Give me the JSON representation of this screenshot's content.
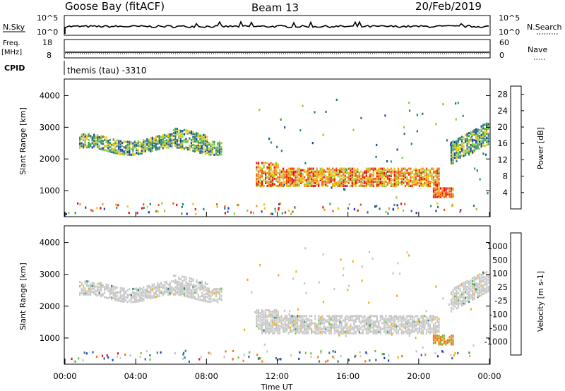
{
  "header": {
    "station": "Goose Bay (fitACF)",
    "beam": "Beam 13",
    "date": "20/Feb/2019"
  },
  "top_panels": {
    "nsky_label": "N.Sky",
    "nsky_ticks": [
      "10^5",
      "10^0"
    ],
    "nsearch_label": "N.Search",
    "nsearch_ticks": [
      "10^5",
      "10^0"
    ],
    "freq_label": "Freq.",
    "freq_unit": "[MHz]",
    "freq_ticks": [
      "18",
      "8"
    ],
    "nave_label": "Nave",
    "nave_ticks": [
      "60",
      "0"
    ],
    "cpid_label": "CPID",
    "cpid_text": "themis (tau) -3310"
  },
  "colors": {
    "power_scale": [
      "#1f1fff",
      "#1f4aa3",
      "#2a7a78",
      "#3a9b5a",
      "#8fce3a",
      "#f4c20d",
      "#f59a12",
      "#f05a10",
      "#e81010"
    ],
    "velocity_scale": [
      "#1a3fd6",
      "#2a66c8",
      "#2e8c6a",
      "#6cc43a",
      "#c8c8c8",
      "#c8c8c8",
      "#f5b014",
      "#f57a10",
      "#e81010"
    ],
    "ground_scatter": "#c8c8c8"
  },
  "chart_data": [
    {
      "type": "heatmap",
      "name": "Power",
      "ylabel": "Slant Range [km]",
      "yticks": [
        "1000",
        "2000",
        "3000",
        "4000"
      ],
      "ylim": [
        200,
        4500
      ],
      "xlabel": "",
      "xlim_hours": [
        0,
        24
      ],
      "colorbar_label": "Power [dB]",
      "colorbar_ticks": [
        "4",
        "8",
        "12",
        "16",
        "20",
        "24",
        "28"
      ],
      "colorbar_range": [
        0,
        30
      ],
      "regions": [
        {
          "x": [
            0.8,
            8.8
          ],
          "y": [
            2150,
            2950
          ],
          "level": "12-20"
        },
        {
          "x": [
            10.8,
            21.2
          ],
          "y": [
            1100,
            1750
          ],
          "level": "16-28"
        },
        {
          "x": [
            20.8,
            22.0
          ],
          "y": [
            800,
            1100
          ],
          "level": "20-28"
        },
        {
          "x": [
            21.8,
            24.0
          ],
          "y": [
            1900,
            3000
          ],
          "level": "8-16"
        }
      ]
    },
    {
      "type": "heatmap",
      "name": "Velocity",
      "ylabel": "Slant Range [km]",
      "yticks": [
        "1000",
        "2000",
        "3000",
        "4000"
      ],
      "ylim": [
        200,
        4500
      ],
      "xlabel": "Time UT",
      "xticks": [
        "00:00",
        "04:00",
        "08:00",
        "12:00",
        "16:00",
        "20:00",
        "00:00"
      ],
      "xlim_hours": [
        0,
        24
      ],
      "colorbar_label": "Velocity [m s-1]",
      "colorbar_ticks": [
        "1000",
        "500",
        "100",
        "25",
        "-25",
        "-100",
        "-500",
        "-1000"
      ],
      "regions": [
        {
          "x": [
            0.8,
            8.8
          ],
          "y": [
            2150,
            2950
          ],
          "level": "ground scatter"
        },
        {
          "x": [
            10.8,
            21.2
          ],
          "y": [
            1100,
            1750
          ],
          "level": "ground scatter"
        },
        {
          "x": [
            20.8,
            22.0
          ],
          "y": [
            800,
            1100
          ],
          "level": "-100 to -500"
        },
        {
          "x": [
            21.8,
            24.0
          ],
          "y": [
            1900,
            3000
          ],
          "level": "ground scatter"
        }
      ]
    }
  ]
}
